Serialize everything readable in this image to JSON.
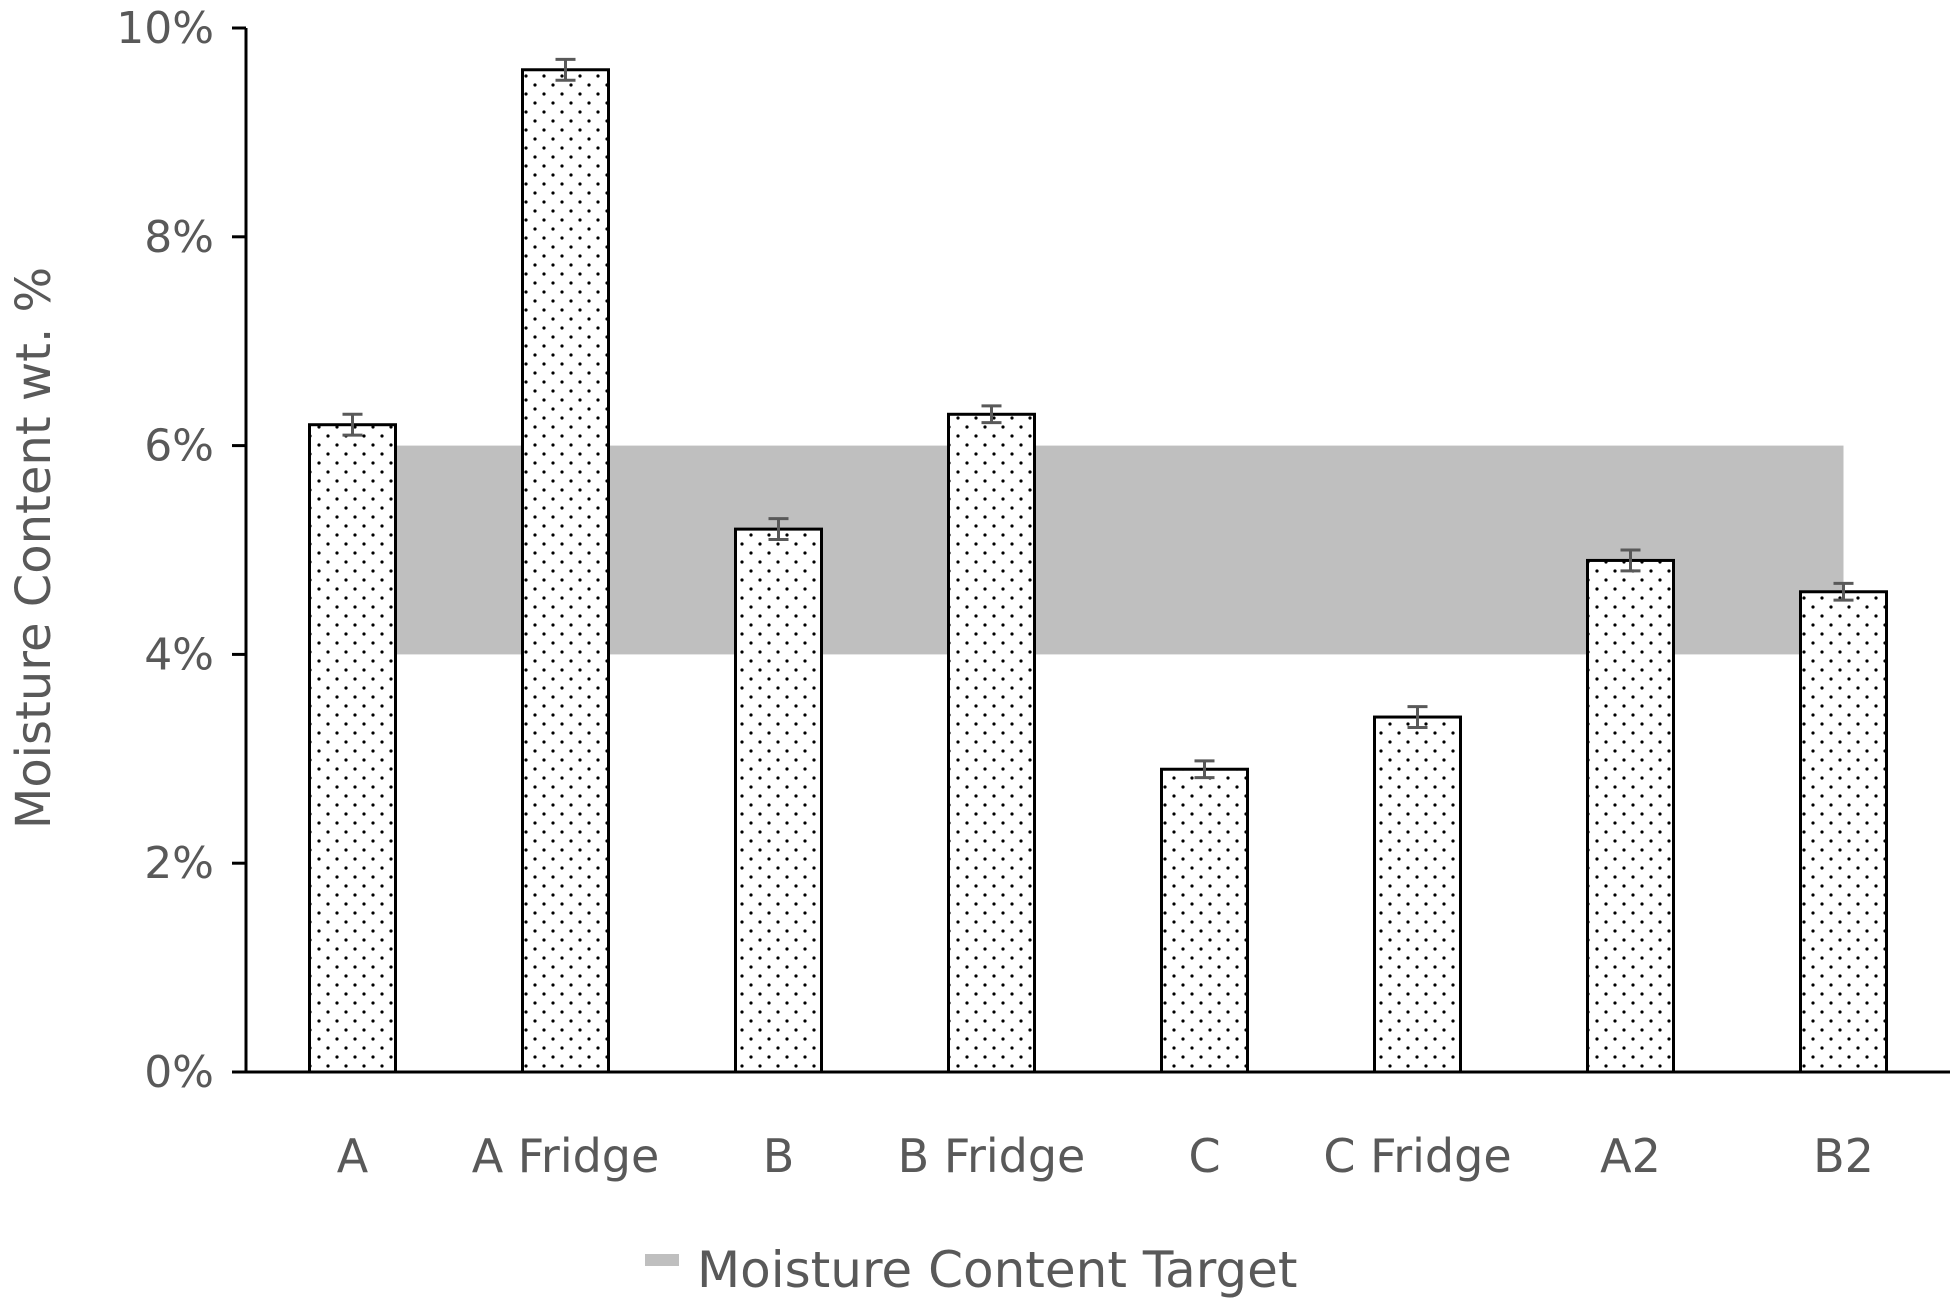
{
  "chart_data": {
    "type": "bar",
    "title": "",
    "xlabel": "",
    "ylabel": "Moisture Content wt. %",
    "ylim": [
      0,
      10
    ],
    "yticks": [
      0,
      2,
      4,
      6,
      8,
      10
    ],
    "ytick_labels": [
      "0%",
      "2%",
      "4%",
      "6%",
      "8%",
      "10%"
    ],
    "categories": [
      "A",
      "A Fridge",
      "B",
      "B Fridge",
      "C",
      "C Fridge",
      "A2",
      "B2"
    ],
    "series": [
      {
        "values": [
          6.2,
          9.6,
          5.2,
          6.3,
          2.9,
          3.4,
          4.9,
          4.6
        ],
        "errors": [
          0.1,
          0.1,
          0.1,
          0.08,
          0.08,
          0.1,
          0.1,
          0.08
        ],
        "pattern": "dotted"
      }
    ],
    "target_band": {
      "name": "Moisture Content Target",
      "min": 4,
      "max": 6,
      "color": "#bfbfbf"
    },
    "grid": false,
    "legend": {
      "position": "bottom",
      "entries": [
        "Moisture Content Target"
      ]
    },
    "colors": {
      "bar_fill": "#ffffff",
      "bar_stroke": "#000000",
      "axis": "#000000",
      "error": "#595959",
      "text": "#595959"
    }
  }
}
